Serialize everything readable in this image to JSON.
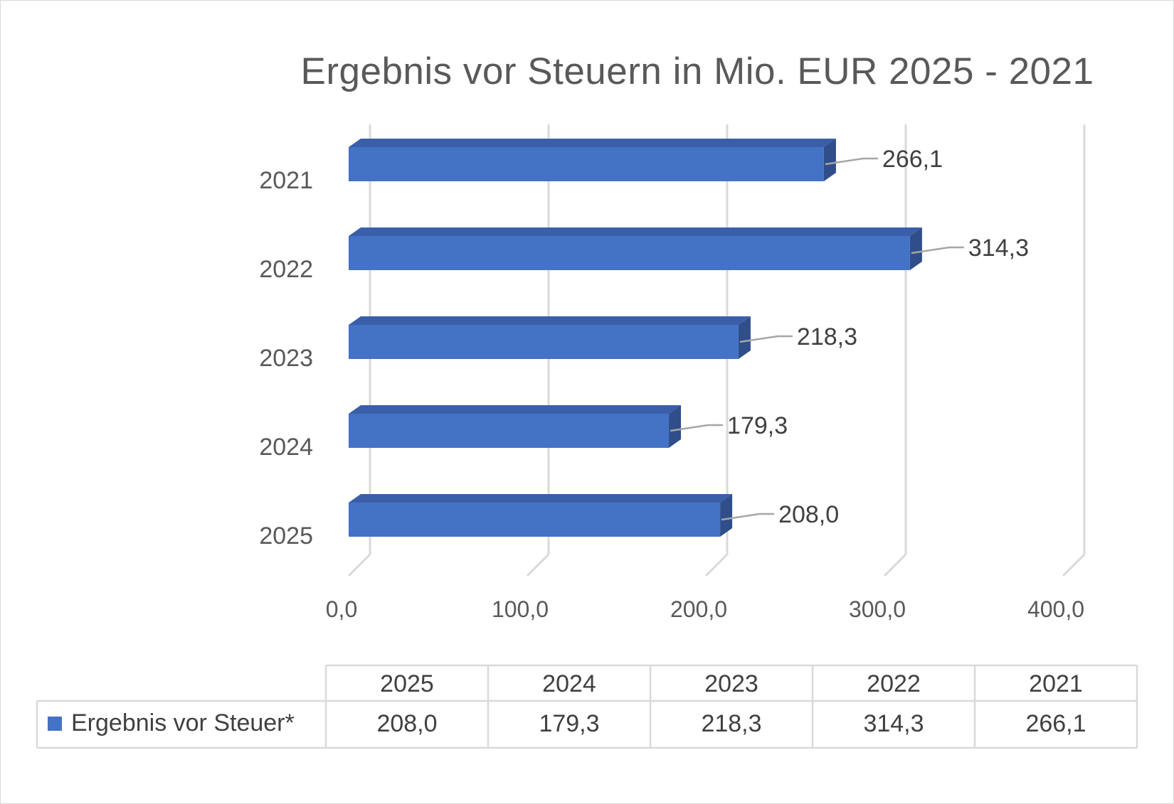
{
  "chart_data": {
    "type": "bar",
    "orientation": "horizontal",
    "title": "Ergebnis vor Steuern in Mio. EUR 2025 - 2021",
    "categories": [
      "2025",
      "2024",
      "2023",
      "2022",
      "2021"
    ],
    "series": [
      {
        "name": "Ergebnis vor Steuer*",
        "values": [
          208.0,
          179.3,
          218.3,
          314.3,
          266.1
        ],
        "value_labels": [
          "208,0",
          "179,3",
          "218,3",
          "314,3",
          "266,1"
        ],
        "color": "#4472C4"
      }
    ],
    "xlim": [
      0,
      400
    ],
    "xticks": [
      "0,0",
      "100,0",
      "200,0",
      "300,0",
      "400,0"
    ],
    "grid": true,
    "legend": "data-table",
    "data_table": {
      "header": [
        "2025",
        "2024",
        "2023",
        "2022",
        "2021"
      ],
      "rows": [
        {
          "label": "Ergebnis vor Steuer*",
          "values": [
            "208,0",
            "179,3",
            "218,3",
            "314,3",
            "266,1"
          ]
        }
      ]
    }
  },
  "colors": {
    "bar_front": "#4472C4",
    "bar_top": "#3A5FA8",
    "bar_side": "#2F4E8A",
    "gridline": "#d9d9d9",
    "text": "#595959"
  }
}
